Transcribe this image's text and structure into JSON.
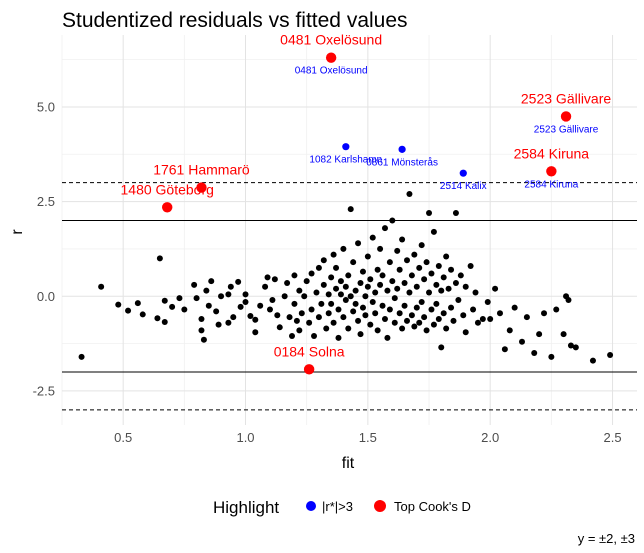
{
  "chart_data": {
    "type": "scatter",
    "title": "Studentized residuals vs fitted values",
    "xlabel": "fit",
    "ylabel": "r",
    "xlim": [
      0.25,
      2.6
    ],
    "ylim": [
      -3.4,
      6.9
    ],
    "x_ticks": [
      "0.5",
      "1.0",
      "1.5",
      "2.0",
      "2.5"
    ],
    "x_tick_values": [
      0.5,
      1.0,
      1.5,
      2.0,
      2.5
    ],
    "y_ticks": [
      "-2.5",
      "0.0",
      "2.5",
      "5.0"
    ],
    "y_tick_values": [
      -2.5,
      0.0,
      2.5,
      5.0
    ],
    "grid": true,
    "caption": "y = ±2, ±3",
    "reference_lines": [
      {
        "y": 2,
        "style": "solid"
      },
      {
        "y": -2,
        "style": "solid"
      },
      {
        "y": 3,
        "style": "dashed"
      },
      {
        "y": -3,
        "style": "dashed"
      }
    ],
    "legend": {
      "title": "Highlight",
      "position": "bottom",
      "entries": [
        {
          "label": "|r*|>3",
          "color": "#0000ff"
        },
        {
          "label": "Top Cook's D",
          "color": "#ff0000"
        }
      ]
    },
    "red_points": [
      {
        "x": 1.35,
        "y": 6.3,
        "label": "0481 Oxelösund"
      },
      {
        "x": 2.31,
        "y": 4.75,
        "label": "2523 Gällivare"
      },
      {
        "x": 2.25,
        "y": 3.3,
        "label": "2584 Kiruna"
      },
      {
        "x": 0.82,
        "y": 2.87,
        "label": "1761 Hammarö"
      },
      {
        "x": 0.68,
        "y": 2.35,
        "label": "1480 Göteborg"
      },
      {
        "x": 1.26,
        "y": -1.93,
        "label": "0184 Solna"
      }
    ],
    "blue_points": [
      {
        "x": 1.35,
        "y": 6.3,
        "label": "0481 Oxelösund"
      },
      {
        "x": 2.31,
        "y": 4.75,
        "label": "2523 Gällivare"
      },
      {
        "x": 1.41,
        "y": 3.95,
        "label": "1082 Karlshamn"
      },
      {
        "x": 1.64,
        "y": 3.88,
        "label": "0861 Mönsterås"
      },
      {
        "x": 1.89,
        "y": 3.25,
        "label": "2514 Kalix"
      },
      {
        "x": 2.25,
        "y": 3.3,
        "label": "2584 Kiruna"
      }
    ],
    "black_points": [
      [
        0.33,
        -1.6
      ],
      [
        0.41,
        0.25
      ],
      [
        0.48,
        -0.22
      ],
      [
        0.52,
        -0.38
      ],
      [
        0.56,
        -0.18
      ],
      [
        0.58,
        -0.48
      ],
      [
        0.64,
        -0.58
      ],
      [
        0.65,
        1.0
      ],
      [
        0.67,
        -0.12
      ],
      [
        0.67,
        -0.68
      ],
      [
        0.7,
        -0.28
      ],
      [
        0.73,
        -0.05
      ],
      [
        0.75,
        -0.35
      ],
      [
        0.79,
        0.3
      ],
      [
        0.8,
        -0.05
      ],
      [
        0.82,
        -0.6
      ],
      [
        0.82,
        -0.9
      ],
      [
        0.83,
        -1.15
      ],
      [
        0.84,
        0.15
      ],
      [
        0.85,
        -0.25
      ],
      [
        0.86,
        0.4
      ],
      [
        0.88,
        -0.4
      ],
      [
        0.89,
        -0.75
      ],
      [
        0.9,
        0.0
      ],
      [
        0.93,
        0.05
      ],
      [
        0.93,
        -0.7
      ],
      [
        0.94,
        0.25
      ],
      [
        0.95,
        -0.55
      ],
      [
        0.97,
        0.38
      ],
      [
        0.98,
        -0.28
      ],
      [
        1.0,
        -0.15
      ],
      [
        1.0,
        0.05
      ],
      [
        1.02,
        -0.52
      ],
      [
        1.04,
        -0.62
      ],
      [
        1.04,
        -0.95
      ],
      [
        1.06,
        -0.25
      ],
      [
        1.08,
        0.25
      ],
      [
        1.09,
        0.5
      ],
      [
        1.1,
        -0.35
      ],
      [
        1.11,
        -0.1
      ],
      [
        1.12,
        0.45
      ],
      [
        1.13,
        -0.5
      ],
      [
        1.14,
        -0.82
      ],
      [
        1.16,
        0.0
      ],
      [
        1.17,
        0.35
      ],
      [
        1.18,
        -0.55
      ],
      [
        1.19,
        -1.05
      ],
      [
        1.2,
        -0.2
      ],
      [
        1.2,
        0.55
      ],
      [
        1.21,
        -0.65
      ],
      [
        1.22,
        0.15
      ],
      [
        1.22,
        -0.9
      ],
      [
        1.23,
        -0.45
      ],
      [
        1.24,
        0.0
      ],
      [
        1.25,
        0.4
      ],
      [
        1.26,
        -0.7
      ],
      [
        1.27,
        0.6
      ],
      [
        1.27,
        -0.35
      ],
      [
        1.28,
        -1.05
      ],
      [
        1.29,
        0.1
      ],
      [
        1.3,
        0.75
      ],
      [
        1.3,
        -0.55
      ],
      [
        1.31,
        -0.2
      ],
      [
        1.32,
        0.3
      ],
      [
        1.32,
        0.95
      ],
      [
        1.33,
        -0.85
      ],
      [
        1.34,
        0.05
      ],
      [
        1.34,
        -0.45
      ],
      [
        1.35,
        0.5
      ],
      [
        1.35,
        -0.2
      ],
      [
        1.36,
        1.1
      ],
      [
        1.36,
        -0.7
      ],
      [
        1.37,
        0.2
      ],
      [
        1.37,
        0.75
      ],
      [
        1.38,
        -0.35
      ],
      [
        1.38,
        -1.1
      ],
      [
        1.39,
        0.05
      ],
      [
        1.39,
        0.4
      ],
      [
        1.4,
        -0.55
      ],
      [
        1.4,
        1.25
      ],
      [
        1.41,
        -0.1
      ],
      [
        1.41,
        0.25
      ],
      [
        1.42,
        0.55
      ],
      [
        1.42,
        -0.85
      ],
      [
        1.43,
        0.0
      ],
      [
        1.43,
        2.3
      ],
      [
        1.44,
        -0.4
      ],
      [
        1.44,
        0.9
      ],
      [
        1.45,
        0.15
      ],
      [
        1.45,
        -0.2
      ],
      [
        1.46,
        -0.65
      ],
      [
        1.46,
        1.4
      ],
      [
        1.47,
        0.35
      ],
      [
        1.47,
        -1.0
      ],
      [
        1.48,
        0.65
      ],
      [
        1.48,
        -0.3
      ],
      [
        1.49,
        0.0
      ],
      [
        1.49,
        -0.5
      ],
      [
        1.5,
        1.05
      ],
      [
        1.5,
        0.25
      ],
      [
        1.51,
        -0.75
      ],
      [
        1.51,
        0.45
      ],
      [
        1.52,
        -0.15
      ],
      [
        1.52,
        1.55
      ],
      [
        1.53,
        0.1
      ],
      [
        1.53,
        -0.45
      ],
      [
        1.54,
        0.7
      ],
      [
        1.54,
        -0.9
      ],
      [
        1.55,
        0.3
      ],
      [
        1.55,
        1.25
      ],
      [
        1.56,
        -0.25
      ],
      [
        1.56,
        0.55
      ],
      [
        1.57,
        -0.6
      ],
      [
        1.57,
        1.8
      ],
      [
        1.58,
        0.15
      ],
      [
        1.58,
        -1.1
      ],
      [
        1.59,
        0.9
      ],
      [
        1.59,
        -0.35
      ],
      [
        1.6,
        0.4
      ],
      [
        1.6,
        2.0
      ],
      [
        1.61,
        -0.05
      ],
      [
        1.61,
        -0.7
      ],
      [
        1.62,
        1.2
      ],
      [
        1.62,
        0.2
      ],
      [
        1.63,
        -0.45
      ],
      [
        1.63,
        0.7
      ],
      [
        1.64,
        -0.85
      ],
      [
        1.64,
        1.5
      ],
      [
        1.65,
        0.35
      ],
      [
        1.65,
        -0.25
      ],
      [
        1.66,
        0.95
      ],
      [
        1.66,
        -0.65
      ],
      [
        1.67,
        0.1
      ],
      [
        1.67,
        2.7
      ],
      [
        1.68,
        -0.5
      ],
      [
        1.68,
        0.55
      ],
      [
        1.69,
        -0.8
      ],
      [
        1.69,
        1.1
      ],
      [
        1.7,
        0.25
      ],
      [
        1.7,
        -0.3
      ],
      [
        1.71,
        0.75
      ],
      [
        1.71,
        -0.7
      ],
      [
        1.72,
        -0.15
      ],
      [
        1.72,
        1.35
      ],
      [
        1.73,
        0.45
      ],
      [
        1.73,
        -0.55
      ],
      [
        1.74,
        -0.9
      ],
      [
        1.74,
        0.9
      ],
      [
        1.75,
        0.1
      ],
      [
        1.75,
        2.2
      ],
      [
        1.76,
        -0.35
      ],
      [
        1.76,
        0.6
      ],
      [
        1.77,
        -0.75
      ],
      [
        1.77,
        1.7
      ],
      [
        1.78,
        0.3
      ],
      [
        1.78,
        -0.2
      ],
      [
        1.79,
        0.8
      ],
      [
        1.79,
        -0.6
      ],
      [
        1.8,
        0.15
      ],
      [
        1.8,
        -1.35
      ],
      [
        1.81,
        0.5
      ],
      [
        1.81,
        -0.45
      ],
      [
        1.82,
        1.05
      ],
      [
        1.82,
        -0.85
      ],
      [
        1.83,
        0.2
      ],
      [
        1.84,
        -0.3
      ],
      [
        1.84,
        0.7
      ],
      [
        1.85,
        -0.65
      ],
      [
        1.86,
        0.35
      ],
      [
        1.86,
        2.2
      ],
      [
        1.87,
        -0.1
      ],
      [
        1.88,
        0.55
      ],
      [
        1.89,
        -0.5
      ],
      [
        1.9,
        0.25
      ],
      [
        1.9,
        -0.95
      ],
      [
        1.92,
        0.8
      ],
      [
        1.93,
        -0.35
      ],
      [
        1.94,
        0.1
      ],
      [
        1.95,
        -0.7
      ],
      [
        1.97,
        -0.6
      ],
      [
        1.99,
        -0.15
      ],
      [
        2.0,
        -0.6
      ],
      [
        2.02,
        0.2
      ],
      [
        2.04,
        -0.45
      ],
      [
        2.06,
        -1.4
      ],
      [
        2.08,
        -0.9
      ],
      [
        2.1,
        -0.3
      ],
      [
        2.13,
        -1.2
      ],
      [
        2.15,
        -0.55
      ],
      [
        2.18,
        -1.5
      ],
      [
        2.2,
        -1.0
      ],
      [
        2.22,
        -0.45
      ],
      [
        2.25,
        -1.6
      ],
      [
        2.27,
        -0.35
      ],
      [
        2.3,
        -1.0
      ],
      [
        2.31,
        0.0
      ],
      [
        2.32,
        -0.1
      ],
      [
        2.33,
        -1.3
      ],
      [
        2.35,
        -1.35
      ],
      [
        2.42,
        -1.7
      ],
      [
        2.49,
        -1.55
      ]
    ]
  }
}
